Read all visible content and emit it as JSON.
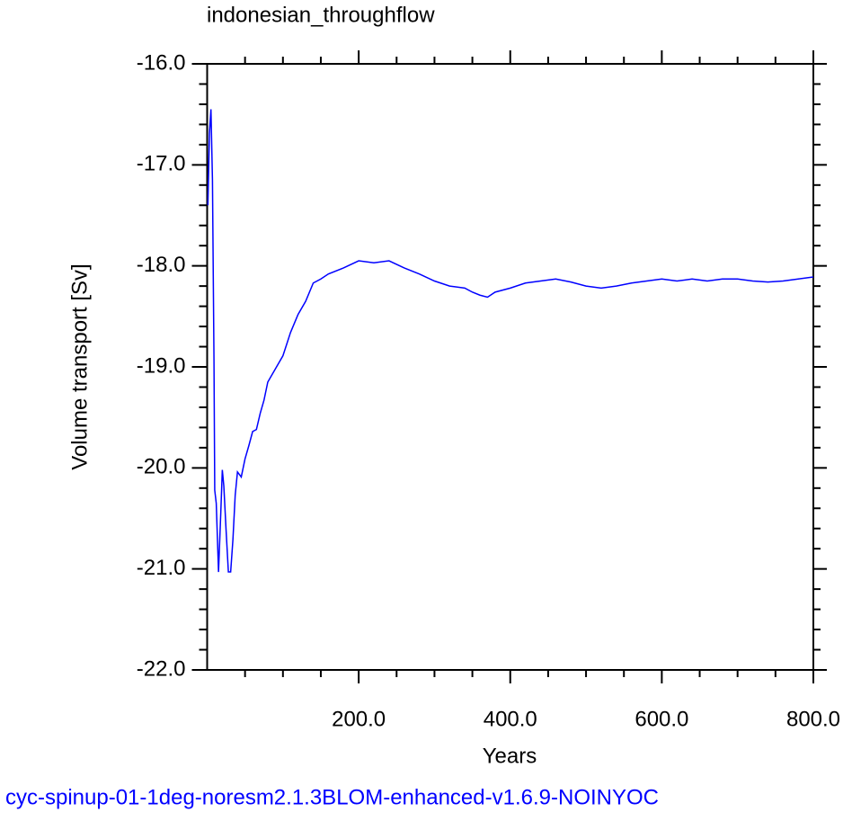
{
  "chart_data": {
    "type": "line",
    "title": "indonesian_throughflow",
    "x_label": "Years",
    "y_label": "Volume transport [Sv]",
    "caption": "cyc-spinup-01-1deg-noresm2.1.3BLOM-enhanced-v1.6.9-NOINYOC",
    "color": "#0000ff",
    "xlim": [
      0,
      800
    ],
    "ylim": [
      -22,
      -16
    ],
    "xticks": [
      {
        "value": 200,
        "label": "200.0"
      },
      {
        "value": 400,
        "label": "400.0"
      },
      {
        "value": 600,
        "label": "600.0"
      },
      {
        "value": 800,
        "label": "800.0"
      }
    ],
    "yticks": [
      {
        "value": -22,
        "label": "-22.0"
      },
      {
        "value": -21,
        "label": "-21.0"
      },
      {
        "value": -20,
        "label": "-20.0"
      },
      {
        "value": -19,
        "label": "-19.0"
      },
      {
        "value": -18,
        "label": "-18.0"
      },
      {
        "value": -17,
        "label": "-17.0"
      },
      {
        "value": -16,
        "label": "-16.0"
      }
    ],
    "xminorticks": [
      50,
      100,
      150,
      250,
      300,
      350,
      450,
      500,
      550,
      650,
      700,
      750
    ],
    "yminorticks": [
      -21.8,
      -21.6,
      -21.4,
      -21.2,
      -20.8,
      -20.6,
      -20.4,
      -20.2,
      -19.8,
      -19.6,
      -19.4,
      -19.2,
      -18.8,
      -18.6,
      -18.4,
      -18.2,
      -17.8,
      -17.6,
      -17.4,
      -17.2,
      -16.8,
      -16.6,
      -16.4,
      -16.2
    ],
    "x": [
      1,
      3,
      5,
      7,
      9,
      10,
      12,
      15,
      18,
      20,
      22,
      25,
      28,
      31,
      34,
      37,
      40,
      45,
      50,
      55,
      60,
      65,
      70,
      75,
      80,
      90,
      100,
      110,
      120,
      130,
      140,
      150,
      160,
      180,
      200,
      220,
      240,
      260,
      280,
      300,
      320,
      340,
      350,
      360,
      370,
      380,
      400,
      420,
      440,
      460,
      480,
      500,
      520,
      540,
      560,
      580,
      600,
      620,
      640,
      660,
      680,
      700,
      720,
      740,
      760,
      780,
      800
    ],
    "values": [
      -17.4,
      -16.69,
      -16.45,
      -17.15,
      -18.93,
      -20.22,
      -20.35,
      -21.03,
      -20.44,
      -20.02,
      -20.18,
      -20.62,
      -21.03,
      -21.03,
      -20.71,
      -20.27,
      -20.04,
      -20.09,
      -19.91,
      -19.78,
      -19.64,
      -19.62,
      -19.46,
      -19.33,
      -19.15,
      -19.02,
      -18.89,
      -18.66,
      -18.48,
      -18.35,
      -18.17,
      -18.13,
      -18.08,
      -18.02,
      -17.95,
      -17.97,
      -17.95,
      -18.02,
      -18.08,
      -18.15,
      -18.2,
      -18.22,
      -18.26,
      -18.29,
      -18.31,
      -18.26,
      -18.22,
      -18.17,
      -18.15,
      -18.13,
      -18.16,
      -18.2,
      -18.22,
      -18.2,
      -18.17,
      -18.15,
      -18.13,
      -18.15,
      -18.13,
      -18.15,
      -18.13,
      -18.13,
      -18.15,
      -18.16,
      -18.15,
      -18.13,
      -18.11
    ]
  }
}
